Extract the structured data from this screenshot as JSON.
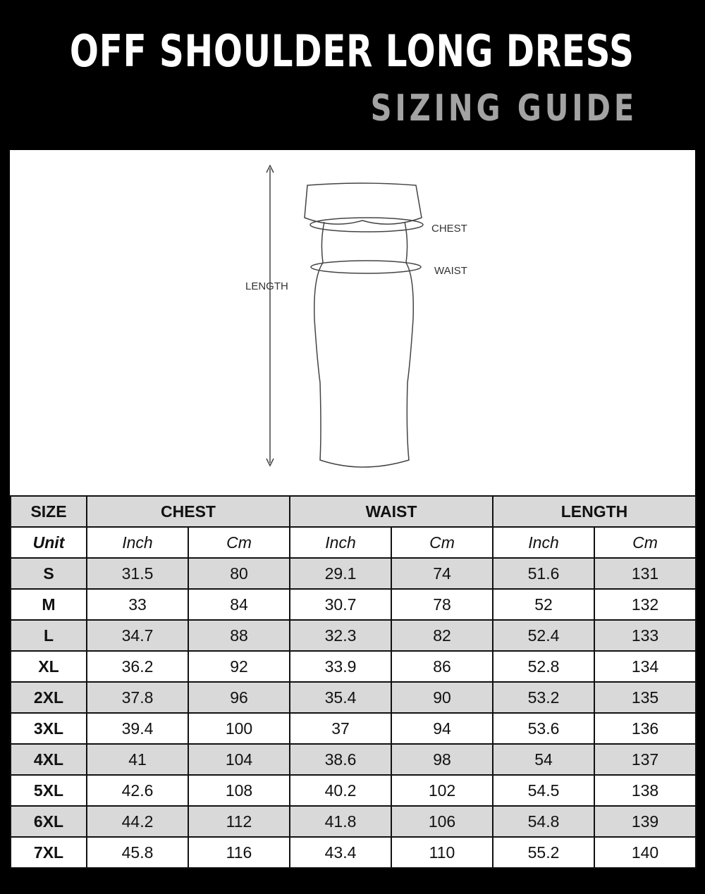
{
  "header": {
    "title": "OFF SHOULDER LONG DRESS",
    "subtitle": "SIZING GUIDE"
  },
  "diagram": {
    "labels": {
      "chest": "CHEST",
      "waist": "WAIST",
      "length": "LENGTH"
    }
  },
  "table": {
    "header": {
      "size": "SIZE",
      "groups": [
        "CHEST",
        "WAIST",
        "LENGTH"
      ]
    },
    "units": {
      "label": "Unit",
      "values": [
        "Inch",
        "Cm",
        "Inch",
        "Cm",
        "Inch",
        "Cm"
      ]
    },
    "rows": [
      {
        "size": "S",
        "values": [
          "31.5",
          "80",
          "29.1",
          "74",
          "51.6",
          "131"
        ]
      },
      {
        "size": "M",
        "values": [
          "33",
          "84",
          "30.7",
          "78",
          "52",
          "132"
        ]
      },
      {
        "size": "L",
        "values": [
          "34.7",
          "88",
          "32.3",
          "82",
          "52.4",
          "133"
        ]
      },
      {
        "size": "XL",
        "values": [
          "36.2",
          "92",
          "33.9",
          "86",
          "52.8",
          "134"
        ]
      },
      {
        "size": "2XL",
        "values": [
          "37.8",
          "96",
          "35.4",
          "90",
          "53.2",
          "135"
        ]
      },
      {
        "size": "3XL",
        "values": [
          "39.4",
          "100",
          "37",
          "94",
          "53.6",
          "136"
        ]
      },
      {
        "size": "4XL",
        "values": [
          "41",
          "104",
          "38.6",
          "98",
          "54",
          "137"
        ]
      },
      {
        "size": "5XL",
        "values": [
          "42.6",
          "108",
          "40.2",
          "102",
          "54.5",
          "138"
        ]
      },
      {
        "size": "6XL",
        "values": [
          "44.2",
          "112",
          "41.8",
          "106",
          "54.8",
          "139"
        ]
      },
      {
        "size": "7XL",
        "values": [
          "45.8",
          "116",
          "43.4",
          "110",
          "55.2",
          "140"
        ]
      }
    ]
  }
}
